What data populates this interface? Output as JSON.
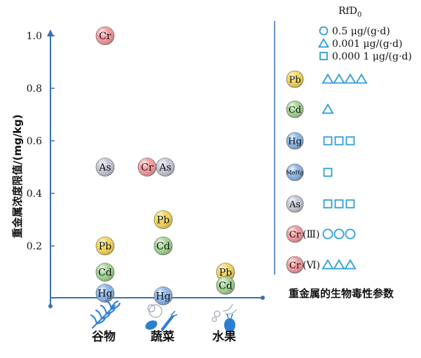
{
  "chart_data": {
    "type": "scatter",
    "ylabel": "重金属浓度限值/(mg/kg)",
    "ylim": [
      0,
      1.05
    ],
    "y_ticks": [
      "0.2",
      "0.4",
      "0.6",
      "0.8",
      "1.0"
    ],
    "y_tick_values": [
      0.2,
      0.4,
      0.6,
      0.8,
      1.0
    ],
    "categories": [
      "谷物",
      "蔬菜",
      "水果"
    ],
    "points": [
      {
        "category": "谷物",
        "label": "Cr",
        "value": 1.0,
        "color": "#f29a9f"
      },
      {
        "category": "谷物",
        "label": "As",
        "value": 0.5,
        "color": "#c4c8d6"
      },
      {
        "category": "谷物",
        "label": "Pb",
        "value": 0.2,
        "color": "#f2d55a"
      },
      {
        "category": "谷物",
        "label": "Cd",
        "value": 0.1,
        "color": "#a3d394"
      },
      {
        "category": "谷物",
        "label": "Hg",
        "value": 0.02,
        "color": "#8cb6e8"
      },
      {
        "category": "蔬菜",
        "label": "Cr",
        "value": 0.5,
        "color": "#f29a9f"
      },
      {
        "category": "蔬菜",
        "label": "As",
        "value": 0.5,
        "color": "#c4c8d6"
      },
      {
        "category": "蔬菜",
        "label": "Pb",
        "value": 0.3,
        "color": "#f2d55a"
      },
      {
        "category": "蔬菜",
        "label": "Cd",
        "value": 0.2,
        "color": "#a3d394"
      },
      {
        "category": "蔬菜",
        "label": "Hg",
        "value": 0.01,
        "color": "#8cb6e8"
      },
      {
        "category": "水果",
        "label": "Pb",
        "value": 0.1,
        "color": "#f2d55a"
      },
      {
        "category": "水果",
        "label": "Cd",
        "value": 0.05,
        "color": "#a3d394"
      }
    ],
    "legend": {
      "title": "RfD",
      "title_subscript": "0",
      "markers": [
        {
          "shape": "circle",
          "text": "0.5 μg/(g·d)"
        },
        {
          "shape": "triangle",
          "text": "0.001 μg/(g·d)"
        },
        {
          "shape": "square",
          "text": "0.000 1 μg/(g·d)"
        }
      ],
      "metals": [
        {
          "label": "Pb",
          "suffix": "",
          "color": "#f2d55a",
          "shape": "triangle",
          "count": 4
        },
        {
          "label": "Cd",
          "suffix": "",
          "color": "#a3d394",
          "shape": "triangle",
          "count": 1
        },
        {
          "label": "Hg",
          "suffix": "",
          "color": "#8cb6e8",
          "shape": "square",
          "count": 3
        },
        {
          "label": "MeHg",
          "suffix": "",
          "color": "#8cb6e8",
          "shape": "square",
          "count": 1
        },
        {
          "label": "As",
          "suffix": "",
          "color": "#c4c8d6",
          "shape": "square",
          "count": 3
        },
        {
          "label": "Cr",
          "suffix": "(Ⅲ)",
          "color": "#f29a9f",
          "shape": "circle",
          "count": 3
        },
        {
          "label": "Cr",
          "suffix": "(Ⅵ)",
          "color": "#f29a9f",
          "shape": "triangle",
          "count": 3
        }
      ],
      "caption": "重金属的生物毒性参数"
    }
  },
  "colors": {
    "axis": "#3a6fb5",
    "marker": "#2a9fd6"
  },
  "icons": [
    "wheat-icon",
    "vegetables-icon",
    "fruits-icon"
  ]
}
